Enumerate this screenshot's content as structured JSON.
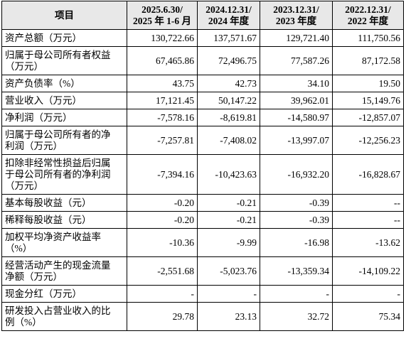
{
  "table": {
    "header": [
      [
        "项目"
      ],
      [
        "2025.6.30/",
        "2025 年 1-6 月"
      ],
      [
        "2024.12.31/",
        "2024 年度"
      ],
      [
        "2023.12.31/",
        "2023 年度"
      ],
      [
        "2022.12.31/",
        "2022 年度"
      ]
    ],
    "rows": [
      [
        "资产总额（万元）",
        "130,722.66",
        "137,571.67",
        "129,721.40",
        "111,750.56"
      ],
      [
        "归属于母公司所有者权益（万元）",
        "67,465.86",
        "72,496.75",
        "77,587.26",
        "87,172.58"
      ],
      [
        "资产负债率（%）",
        "43.75",
        "42.73",
        "34.10",
        "19.50"
      ],
      [
        "营业收入（万元）",
        "17,121.45",
        "50,147.22",
        "39,962.01",
        "15,149.76"
      ],
      [
        "净利润（万元）",
        "-7,578.16",
        "-8,619.81",
        "-14,580.97",
        "-12,857.07"
      ],
      [
        "归属于母公司所有者的净利润（万元）",
        "-7,257.81",
        "-7,408.02",
        "-13,997.07",
        "-12,256.23"
      ],
      [
        "扣除非经常性损益后归属于母公司所有者的净利润（万元）",
        "-7,394.16",
        "-10,423.63",
        "-16,932.20",
        "-16,828.67"
      ],
      [
        "基本每股收益（元）",
        "-0.20",
        "-0.21",
        "-0.39",
        "--"
      ],
      [
        "稀释每股收益（元）",
        "-0.20",
        "-0.21",
        "-0.39",
        "--"
      ],
      [
        "加权平均净资产收益率（%）",
        "-10.36",
        "-9.99",
        "-16.98",
        "-13.62"
      ],
      [
        "经营活动产生的现金流量净额（万元）",
        "-2,551.68",
        "-5,023.76",
        "-13,359.34",
        "-14,109.22"
      ],
      [
        "现金分红（万元）",
        "-",
        "-",
        "-",
        "-"
      ],
      [
        "研发投入占营业收入的比例（%）",
        "29.78",
        "23.13",
        "32.72",
        "75.34"
      ]
    ]
  }
}
